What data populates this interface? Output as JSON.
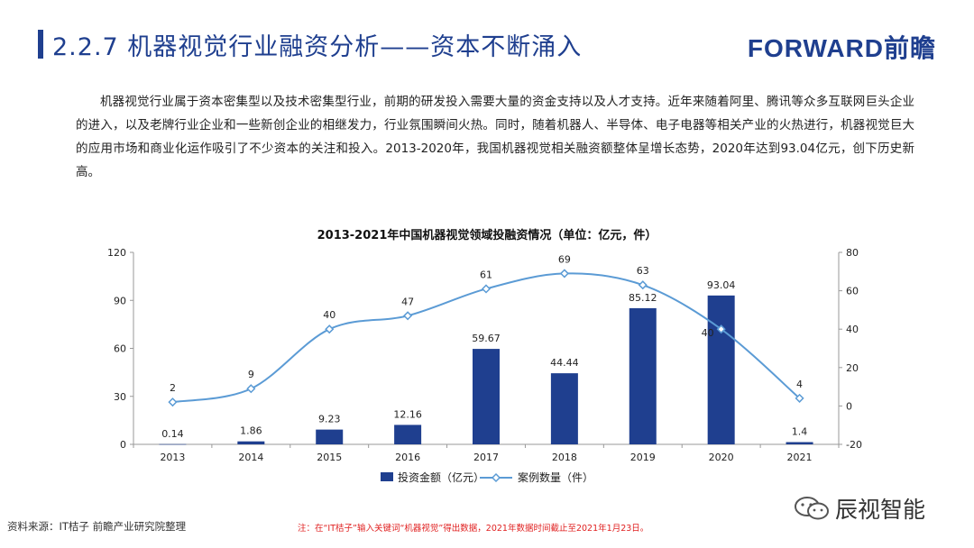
{
  "header": {
    "title": "2.2.7 机器视觉行业融资分析——资本不断涌入",
    "brand": "FORWARD前瞻"
  },
  "intro": "机器视觉行业属于资本密集型以及技术密集型行业，前期的研发投入需要大量的资金支持以及人才支持。近年来随着阿里、腾讯等众多互联网巨头企业的进入，以及老牌行业企业和一些新创企业的相继发力，行业氛围瞬间火热。同时，随着机器人、半导体、电子电器等相关产业的火热进行，机器视觉巨大的应用市场和商业化运作吸引了不少资本的关注和投入。2013-2020年，我国机器视觉相关融资额整体呈增长态势，2020年达到93.04亿元，创下历史新高。",
  "chart_data": {
    "type": "bar",
    "title": "2013-2021年中国机器视觉领域投融资情况（单位：亿元，件）",
    "categories": [
      "2013",
      "2014",
      "2015",
      "2016",
      "2017",
      "2018",
      "2019",
      "2020",
      "2021"
    ],
    "series": [
      {
        "name": "投资金额（亿元）",
        "type": "bar",
        "axis": "left",
        "color": "#1f3f8f",
        "values": [
          0.14,
          1.86,
          9.23,
          12.16,
          59.67,
          44.44,
          85.12,
          93.04,
          1.4
        ],
        "labels": [
          "0.14",
          "1.86",
          "9.23",
          "12.16",
          "59.67",
          "44.44",
          "85.12",
          "93.04",
          "1.4"
        ]
      },
      {
        "name": "案例数量（件）",
        "type": "line",
        "axis": "right",
        "color": "#5b9bd5",
        "values": [
          2,
          9,
          40,
          47,
          61,
          69,
          63,
          40,
          4
        ],
        "labels": [
          "2",
          "9",
          "40",
          "47",
          "61",
          "69",
          "63",
          "40",
          "4"
        ]
      }
    ],
    "y_left": {
      "range": [
        0,
        120
      ],
      "ticks": [
        "0",
        "30",
        "60",
        "90",
        "120"
      ]
    },
    "y_right": {
      "range": [
        -20,
        80
      ],
      "ticks": [
        "-20",
        "0",
        "20",
        "40",
        "60",
        "80"
      ]
    },
    "legend_position": "bottom",
    "grid": false
  },
  "footer": {
    "source": "资料来源：IT桔子 前瞻产业研究院整理",
    "note": "注：在“IT桔子”输入关键词“机器视觉”得出数据，2021年数据时间截止至2021年1月23日。",
    "wechat_label": "辰视智能"
  },
  "icons": {
    "wechat": "wechat-icon"
  }
}
